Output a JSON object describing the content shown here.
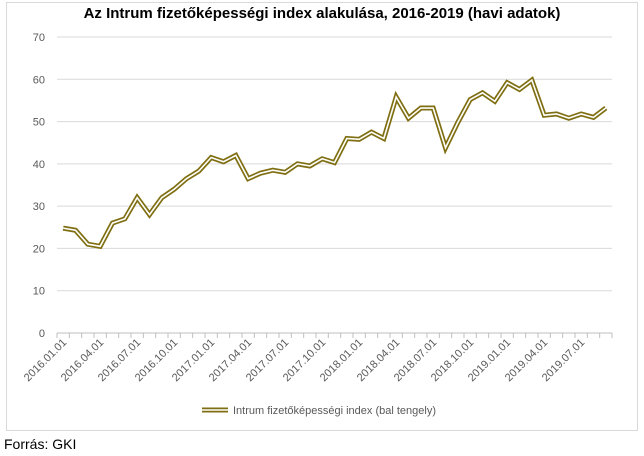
{
  "chart_data": {
    "type": "line",
    "title": "Az Intrum fizetőképességi index alakulása, 2016-2019 (havi adatok)",
    "xlabel": "",
    "ylabel": "",
    "ylim": [
      0,
      70
    ],
    "yticks": [
      0,
      10,
      20,
      30,
      40,
      50,
      60,
      70
    ],
    "grid": "horizontal",
    "legend_position": "bottom",
    "line_color": "#7f6f12",
    "x": [
      "2016.01.01",
      "2016.02.01",
      "2016.03.01",
      "2016.04.01",
      "2016.05.01",
      "2016.06.01",
      "2016.07.01",
      "2016.08.01",
      "2016.09.01",
      "2016.10.01",
      "2016.11.01",
      "2016.12.01",
      "2017.01.01",
      "2017.02.01",
      "2017.03.01",
      "2017.04.01",
      "2017.05.01",
      "2017.06.01",
      "2017.07.01",
      "2017.08.01",
      "2017.09.01",
      "2017.10.01",
      "2017.11.01",
      "2017.12.01",
      "2018.01.01",
      "2018.02.01",
      "2018.03.01",
      "2018.04.01",
      "2018.05.01",
      "2018.06.01",
      "2018.07.01",
      "2018.08.01",
      "2018.09.01",
      "2018.10.01",
      "2018.11.01",
      "2018.12.01",
      "2019.01.01",
      "2019.02.01",
      "2019.03.01",
      "2019.04.01",
      "2019.05.01",
      "2019.06.01",
      "2019.07.01",
      "2019.08.01",
      "2019.09.01"
    ],
    "xtick_labels": [
      "2016.01.01",
      "2016.04.01",
      "2016.07.01",
      "2016.10.01",
      "2017.01.01",
      "2017.04.01",
      "2017.07.01",
      "2017.10.01",
      "2018.01.01",
      "2018.04.01",
      "2018.07.01",
      "2018.10.01",
      "2019.01.01",
      "2019.04.01",
      "2019.07.01"
    ],
    "series": [
      {
        "name": "Intrum fizetőképességi index (bal tengely)",
        "values": [
          24.8,
          24.3,
          21.0,
          20.5,
          26.0,
          27.0,
          32.0,
          28.0,
          32.0,
          34.0,
          36.5,
          38.3,
          41.5,
          40.5,
          42.0,
          36.5,
          37.8,
          38.5,
          38.0,
          40.0,
          39.5,
          41.2,
          40.3,
          46.0,
          45.8,
          47.5,
          46.0,
          55.8,
          50.8,
          53.2,
          53.2,
          43.8,
          49.8,
          55.2,
          56.8,
          54.8,
          59.2,
          57.6,
          59.8,
          51.5,
          51.8,
          50.8,
          51.8,
          51.0,
          53.2
        ]
      }
    ]
  },
  "footer": {
    "source": "Forrás: GKI"
  }
}
